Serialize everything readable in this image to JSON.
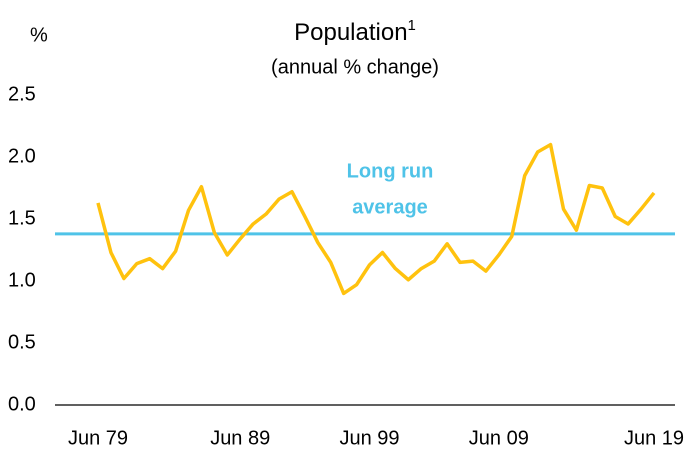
{
  "chart_data": {
    "type": "line",
    "title": "Population",
    "title_superscript": "1",
    "subtitle": "(annual % change)",
    "y_axis_label": "%",
    "categories": [
      "Jun 79",
      null,
      null,
      null,
      null,
      null,
      null,
      null,
      null,
      null,
      null,
      "Jun 89",
      null,
      null,
      null,
      null,
      null,
      null,
      null,
      null,
      null,
      "Jun 99",
      null,
      null,
      null,
      null,
      null,
      null,
      null,
      null,
      null,
      "Jun 09",
      null,
      null,
      null,
      null,
      null,
      null,
      null,
      null,
      null,
      null,
      null,
      "Jun 19"
    ],
    "series": [
      {
        "name": "Population",
        "color": "#ffc20e",
        "values": [
          1.63,
          1.23,
          1.02,
          1.14,
          1.18,
          1.1,
          1.24,
          1.57,
          1.76,
          1.39,
          1.21,
          1.34,
          1.46,
          1.54,
          1.66,
          1.72,
          1.52,
          1.31,
          1.15,
          0.9,
          0.97,
          1.13,
          1.23,
          1.1,
          1.01,
          1.1,
          1.16,
          1.3,
          1.15,
          1.16,
          1.08,
          1.21,
          1.36,
          1.85,
          2.04,
          2.1,
          1.58,
          1.41,
          1.77,
          1.75,
          1.52,
          1.46,
          1.58,
          1.71
        ]
      }
    ],
    "reference_line": {
      "label_lines": [
        "Long run",
        "average"
      ],
      "value": 1.38,
      "color": "#4fc3e8"
    },
    "ylim": [
      0,
      2.5
    ],
    "yticks": [
      {
        "value": 0,
        "label": "0.0"
      },
      {
        "value": 0.5,
        "label": "0.5"
      },
      {
        "value": 1,
        "label": "1.0"
      },
      {
        "value": 1.5,
        "label": "1.5"
      },
      {
        "value": 2,
        "label": "2.0"
      },
      {
        "value": 2.5,
        "label": "2.5"
      }
    ]
  }
}
